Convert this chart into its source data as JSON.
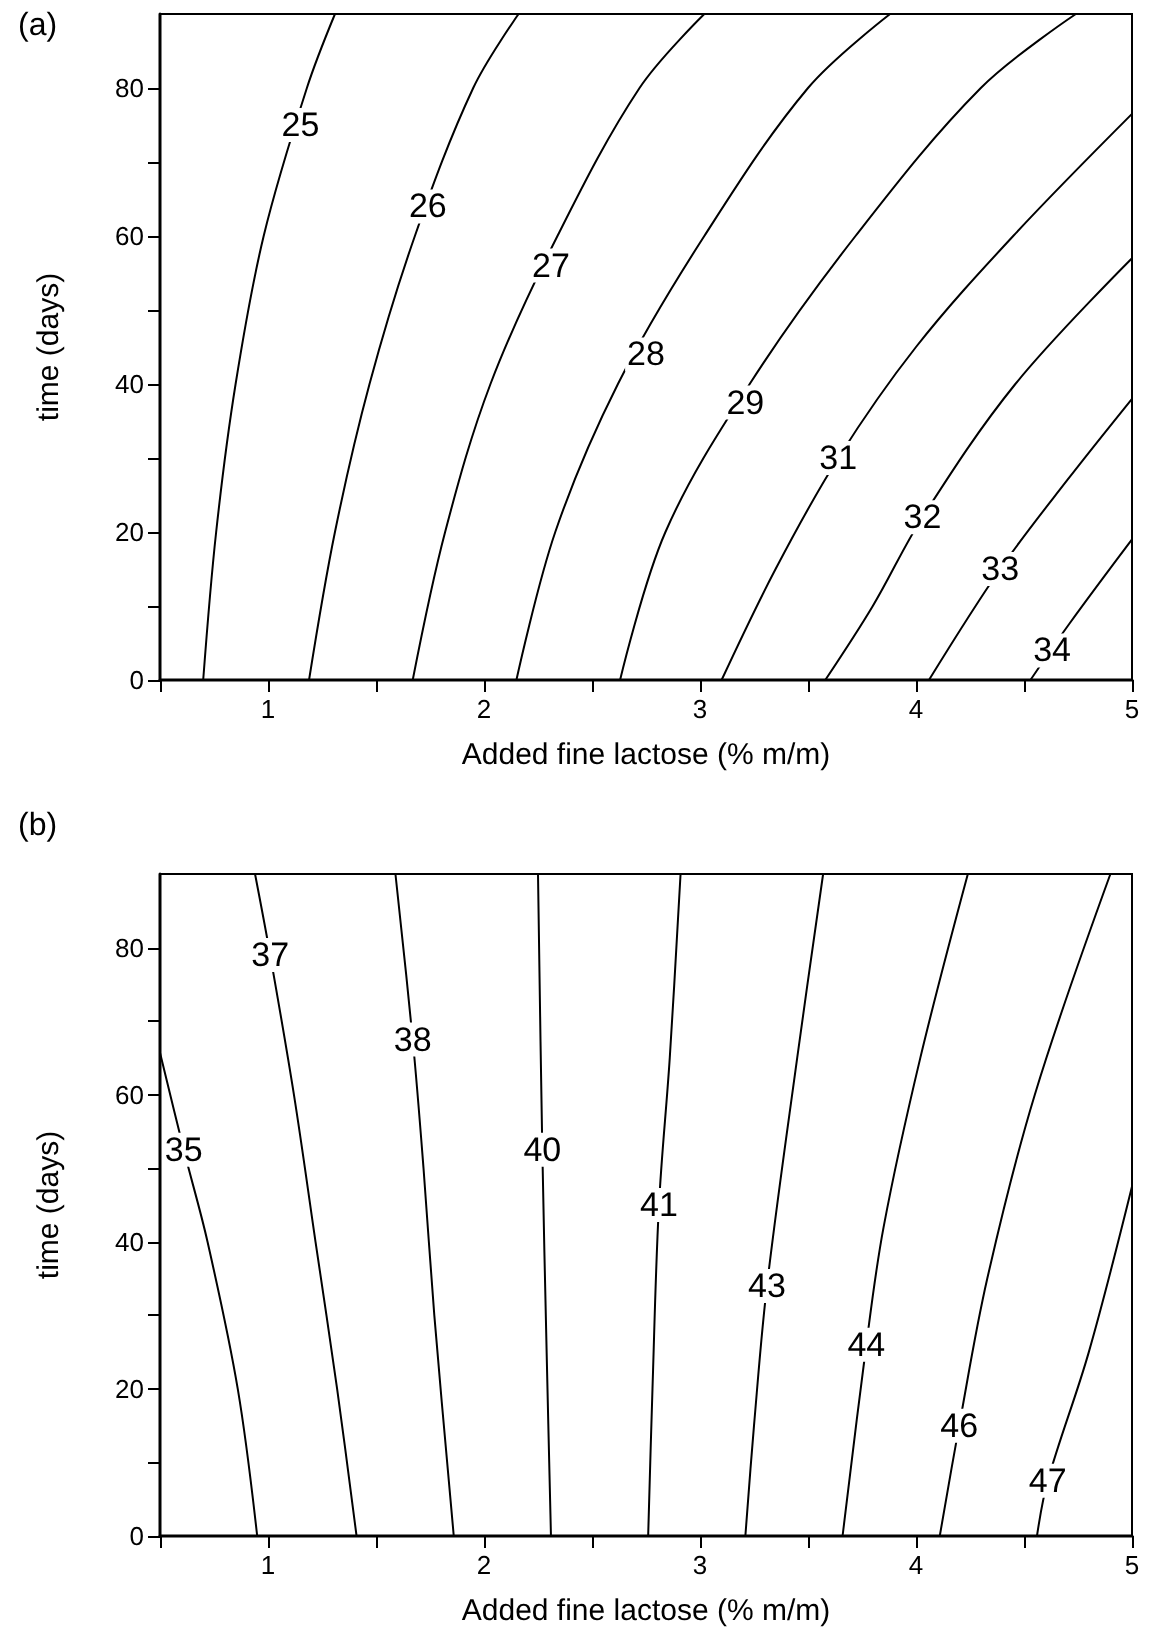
{
  "chart_data": [
    {
      "type": "line",
      "title": "(a)",
      "xlabel": "Added fine lactose (% m/m)",
      "ylabel": "time (days)",
      "xlim": [
        0.5,
        5
      ],
      "ylim": [
        0,
        90
      ],
      "marker": "none",
      "xticks": [
        {
          "value": 0.5,
          "label": null
        },
        1,
        {
          "value": 1.5,
          "label": null
        },
        2,
        {
          "value": 2.5,
          "label": null
        },
        3,
        {
          "value": 3.5,
          "label": null
        },
        4,
        {
          "value": 4.5,
          "label": null
        },
        5
      ],
      "yticks": [
        0,
        {
          "value": 10,
          "label": null
        },
        20,
        {
          "value": 30,
          "label": null
        },
        40,
        {
          "value": 50,
          "label": null
        },
        60,
        {
          "value": 70,
          "label": null
        },
        80
      ],
      "series": [
        {
          "color": "#000000",
          "x": [
            0.7,
            0.76,
            0.85,
            0.98,
            1.18,
            1.31
          ],
          "values": [
            0,
            20,
            40,
            60,
            80,
            90
          ]
        },
        {
          "color": "#000000",
          "x": [
            1.19,
            1.31,
            1.47,
            1.68,
            1.95,
            2.16
          ],
          "values": [
            0,
            20,
            40,
            60,
            80,
            90
          ]
        },
        {
          "color": "#000000",
          "x": [
            1.67,
            1.82,
            2.03,
            2.34,
            2.72,
            3.02
          ],
          "values": [
            0,
            20,
            40,
            60,
            80,
            90
          ]
        },
        {
          "color": "#000000",
          "x": [
            2.15,
            2.33,
            2.62,
            3.02,
            3.5,
            3.88
          ],
          "values": [
            0,
            20,
            40,
            60,
            80,
            90
          ]
        },
        {
          "color": "#000000",
          "x": [
            2.63,
            2.84,
            3.23,
            3.72,
            4.3,
            4.74
          ],
          "values": [
            0,
            20,
            40,
            60,
            80,
            90
          ]
        },
        {
          "color": "#000000",
          "x": [
            3.1,
            3.35,
            3.64,
            4.0,
            4.45,
            5
          ],
          "values": [
            0,
            15,
            30,
            45,
            60,
            76.5
          ]
        },
        {
          "color": "#000000",
          "x": [
            3.58,
            3.8,
            4.03,
            4.46,
            5
          ],
          "values": [
            0,
            10,
            22,
            40,
            57
          ]
        },
        {
          "color": "#000000",
          "x": [
            4.06,
            4.39,
            4.7,
            5
          ],
          "values": [
            0,
            15,
            27,
            38
          ]
        },
        {
          "color": "#000000",
          "x": [
            4.53,
            4.71,
            5
          ],
          "values": [
            0,
            7.6,
            19
          ]
        }
      ],
      "annotations": [
        {
          "text": "25",
          "x": 1.15,
          "y": 75
        },
        {
          "text": "26",
          "x": 1.74,
          "y": 64
        },
        {
          "text": "27",
          "x": 2.31,
          "y": 56
        },
        {
          "text": "28",
          "x": 2.75,
          "y": 44
        },
        {
          "text": "29",
          "x": 3.21,
          "y": 37.5
        },
        {
          "text": "31",
          "x": 3.64,
          "y": 30
        },
        {
          "text": "32",
          "x": 4.03,
          "y": 22
        },
        {
          "text": "33",
          "x": 4.39,
          "y": 15
        },
        {
          "text": "34",
          "x": 4.63,
          "y": 4
        }
      ]
    },
    {
      "type": "line",
      "title": "(b)",
      "xlabel": "Added fine lactose (% m/m)",
      "ylabel": "time (days)",
      "xlim": [
        0.5,
        5
      ],
      "ylim": [
        0,
        90
      ],
      "marker": "none",
      "xticks": [
        {
          "value": 0.5,
          "label": null
        },
        1,
        {
          "value": 1.5,
          "label": null
        },
        2,
        {
          "value": 2.5,
          "label": null
        },
        3,
        {
          "value": 3.5,
          "label": null
        },
        4,
        {
          "value": 4.5,
          "label": null
        },
        5
      ],
      "yticks": [
        0,
        {
          "value": 10,
          "label": null
        },
        20,
        {
          "value": 30,
          "label": null
        },
        40,
        {
          "value": 50,
          "label": null
        },
        60,
        {
          "value": 70,
          "label": null
        },
        80
      ],
      "series": [
        {
          "color": "#000000",
          "x": [
            0.5,
            0.61,
            0.72,
            0.86,
            0.95
          ],
          "values": [
            65.7,
            52.5,
            40,
            20,
            0
          ]
        },
        {
          "color": "#000000",
          "x": [
            0.94,
            1.01,
            1.12,
            1.22,
            1.32,
            1.41
          ],
          "values": [
            90,
            79,
            60,
            40,
            20,
            0
          ]
        },
        {
          "color": "#000000",
          "x": [
            1.59,
            1.67,
            1.72,
            1.77,
            1.86
          ],
          "values": [
            90,
            67.5,
            50,
            30,
            0
          ]
        },
        {
          "color": "#000000",
          "x": [
            2.25,
            2.27,
            2.29,
            2.31
          ],
          "values": [
            90,
            52.5,
            25,
            0
          ]
        },
        {
          "color": "#000000",
          "x": [
            2.91,
            2.86,
            2.81,
            2.78,
            2.76
          ],
          "values": [
            90,
            65,
            45,
            20,
            0
          ]
        },
        {
          "color": "#000000",
          "x": [
            3.57,
            3.45,
            3.31,
            3.25,
            3.21
          ],
          "values": [
            90,
            65,
            34,
            15,
            0
          ]
        },
        {
          "color": "#000000",
          "x": [
            4.24,
            4.02,
            3.85,
            3.77,
            3.66
          ],
          "values": [
            90,
            65,
            42,
            26,
            0
          ]
        },
        {
          "color": "#000000",
          "x": [
            4.9,
            4.55,
            4.33,
            4.2,
            4.11
          ],
          "values": [
            90,
            60,
            35,
            15,
            0
          ]
        },
        {
          "color": "#000000",
          "x": [
            5,
            4.8,
            4.61,
            4.56
          ],
          "values": [
            47.5,
            25,
            7.5,
            0
          ]
        }
      ],
      "annotations": [
        {
          "text": "35",
          "x": 0.61,
          "y": 52.5
        },
        {
          "text": "37",
          "x": 1.01,
          "y": 79
        },
        {
          "text": "38",
          "x": 1.67,
          "y": 67.5
        },
        {
          "text": "40",
          "x": 2.27,
          "y": 52.5
        },
        {
          "text": "41",
          "x": 2.81,
          "y": 45
        },
        {
          "text": "43",
          "x": 3.31,
          "y": 34
        },
        {
          "text": "44",
          "x": 3.77,
          "y": 26
        },
        {
          "text": "46",
          "x": 4.2,
          "y": 15
        },
        {
          "text": "47",
          "x": 4.61,
          "y": 7.5
        }
      ]
    }
  ]
}
